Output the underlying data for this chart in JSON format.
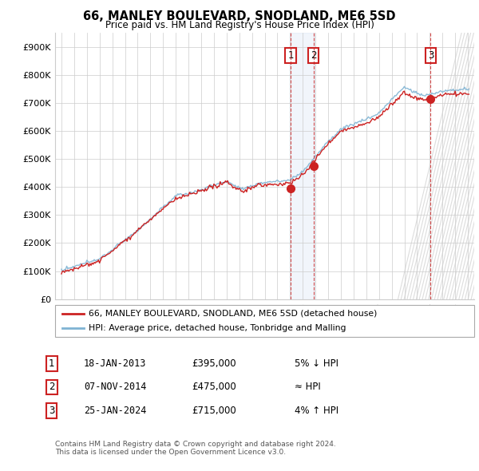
{
  "title": "66, MANLEY BOULEVARD, SNODLAND, ME6 5SD",
  "subtitle": "Price paid vs. HM Land Registry's House Price Index (HPI)",
  "ylabel_ticks": [
    "£0",
    "£100K",
    "£200K",
    "£300K",
    "£400K",
    "£500K",
    "£600K",
    "£700K",
    "£800K",
    "£900K"
  ],
  "ytick_values": [
    0,
    100000,
    200000,
    300000,
    400000,
    500000,
    600000,
    700000,
    800000,
    900000
  ],
  "ylim": [
    0,
    950000
  ],
  "xlim_start": 1994.5,
  "xlim_end": 2027.5,
  "sale1_date": 2013.05,
  "sale1_price": 395000,
  "sale2_date": 2014.85,
  "sale2_price": 475000,
  "sale3_date": 2024.07,
  "sale3_price": 715000,
  "hpi_color": "#7fb3d3",
  "property_color": "#cc2222",
  "marker_color": "#cc2222",
  "shade_color": "#ddeeff",
  "grid_color": "#cccccc",
  "background_color": "#ffffff",
  "legend_line1": "66, MANLEY BOULEVARD, SNODLAND, ME6 5SD (detached house)",
  "legend_line2": "HPI: Average price, detached house, Tonbridge and Malling",
  "table_row1": [
    "1",
    "18-JAN-2013",
    "£395,000",
    "5% ↓ HPI"
  ],
  "table_row2": [
    "2",
    "07-NOV-2014",
    "£475,000",
    "≈ HPI"
  ],
  "table_row3": [
    "3",
    "25-JAN-2024",
    "£715,000",
    "4% ↑ HPI"
  ],
  "footer1": "Contains HM Land Registry data © Crown copyright and database right 2024.",
  "footer2": "This data is licensed under the Open Government Licence v3.0."
}
